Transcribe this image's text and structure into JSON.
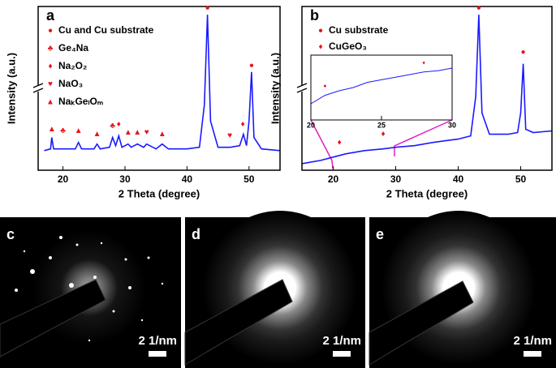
{
  "chart_data": [
    {
      "panel": "a",
      "type": "line",
      "xlabel": "2 Theta (degree)",
      "ylabel": "Intensity (a.u.)",
      "color": "#1a1aff",
      "marker_color": "#e8141b",
      "xlim": [
        16,
        55
      ],
      "ylim": [
        0,
        100
      ],
      "xticks": [
        20,
        30,
        40,
        50
      ],
      "x": [
        17,
        18,
        18.2,
        18.5,
        20,
        22,
        22.5,
        23,
        25,
        25.5,
        26,
        27.5,
        28,
        28.5,
        29,
        29.5,
        30.5,
        31,
        32,
        33,
        33.5,
        35,
        36,
        37,
        40,
        42,
        42.8,
        43.3,
        43.8,
        45,
        47,
        48.5,
        49.1,
        49.6,
        50,
        50.4,
        50.8,
        52,
        55
      ],
      "values": [
        12,
        13,
        20,
        13,
        13,
        13,
        17,
        13,
        13,
        16,
        13,
        14,
        20,
        15,
        21,
        14,
        16,
        14,
        16,
        14,
        16,
        13,
        16,
        13,
        13,
        14,
        40,
        95,
        30,
        14,
        14,
        15,
        22,
        15,
        30,
        60,
        20,
        13,
        12
      ],
      "markers": [
        {
          "name": "Cu and Cu substrate",
          "symbol": "●",
          "x": [
            43.3,
            50.4
          ],
          "values": [
            99,
            64
          ]
        },
        {
          "name": "Ge₄Na",
          "symbol": "♣",
          "x": [
            20,
            28
          ],
          "values": [
            24,
            27
          ]
        },
        {
          "name": "Na₂O₂",
          "symbol": "♦",
          "x": [
            29,
            49
          ],
          "values": [
            28,
            28
          ]
        },
        {
          "name": "NaO₃",
          "symbol": "♥",
          "x": [
            33.5,
            46.9
          ],
          "values": [
            23,
            21
          ]
        },
        {
          "name": "NaₖGeₗOₘ",
          "symbol": "▲",
          "x": [
            18.2,
            22.5,
            25.5,
            30.5,
            32,
            36
          ],
          "values": [
            25,
            24,
            22,
            23,
            23,
            22
          ]
        }
      ]
    },
    {
      "panel": "b",
      "type": "line",
      "xlabel": "2 Theta (degree)",
      "ylabel": "Intensity (a.u.)",
      "color": "#1a1aff",
      "marker_color": "#e8141b",
      "xlim": [
        15,
        55
      ],
      "ylim": [
        0,
        100
      ],
      "xticks": [
        20,
        30,
        40,
        50
      ],
      "x": [
        15,
        18,
        20,
        22,
        25,
        28,
        30,
        33,
        36,
        38,
        40,
        41,
        42,
        42.8,
        43.3,
        43.8,
        45,
        48,
        49.5,
        50,
        50.4,
        50.8,
        52,
        55
      ],
      "values": [
        4,
        6,
        8,
        10,
        12,
        13,
        14,
        15,
        17,
        18,
        19,
        20,
        21,
        45,
        95,
        35,
        22,
        22,
        23,
        35,
        65,
        25,
        23,
        24
      ],
      "markers": [
        {
          "name": "Cu substrate",
          "symbol": "●",
          "x": [
            43.3,
            50.4
          ],
          "values": [
            99,
            72
          ]
        },
        {
          "name": "CuGeO₃",
          "symbol": "♦",
          "x": [
            21,
            28
          ],
          "values": [
            17,
            22
          ]
        }
      ]
    },
    {
      "type": "line",
      "color": "#1a1aff",
      "marker_color": "#e8141b",
      "xlim": [
        20,
        30
      ],
      "ylim": [
        0,
        100
      ],
      "xticks": [
        20,
        25,
        30
      ],
      "x": [
        20,
        21,
        22,
        23,
        24,
        25,
        26,
        27,
        28,
        29,
        30
      ],
      "values": [
        25,
        38,
        45,
        50,
        58,
        62,
        66,
        70,
        74,
        76,
        80
      ],
      "markers": [
        {
          "symbol": "●",
          "x": [
            21
          ],
          "values": [
            52
          ]
        },
        {
          "symbol": "♦",
          "x": [
            28
          ],
          "values": [
            88
          ]
        }
      ]
    }
  ],
  "images": [
    {
      "panel": "c",
      "scale": "2 1/nm"
    },
    {
      "panel": "d",
      "scale": "2 1/nm"
    },
    {
      "panel": "e",
      "scale": "2 1/nm"
    }
  ]
}
